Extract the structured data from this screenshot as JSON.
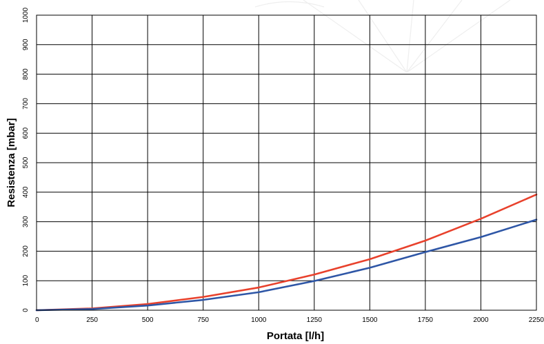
{
  "chart_data": {
    "type": "line",
    "title": "",
    "xlabel": "Portata [l/h]",
    "ylabel": "Resistenza [mbar]",
    "xlim": [
      0,
      2250
    ],
    "ylim": [
      0,
      1000
    ],
    "x_ticks": [
      "0",
      "250",
      "500",
      "750",
      "1000",
      "1250",
      "1500",
      "1750",
      "2000",
      "2250"
    ],
    "y_ticks": [
      "0",
      "100",
      "200",
      "300",
      "400",
      "500",
      "600",
      "700",
      "800",
      "900",
      "1000"
    ],
    "grid": true,
    "legend": "none",
    "series": [
      {
        "color": "#e8412c",
        "x": [
          0,
          250,
          500,
          750,
          1000,
          1250,
          1500,
          1750,
          2000,
          2250
        ],
        "y": [
          0,
          6,
          21,
          45,
          77,
          121,
          173,
          236,
          310,
          392
        ]
      },
      {
        "color": "#2e56a6",
        "x": [
          0,
          250,
          500,
          750,
          1000,
          1250,
          1500,
          1750,
          2000,
          2250
        ],
        "y": [
          0,
          4,
          16,
          35,
          61,
          99,
          144,
          197,
          248,
          307
        ]
      }
    ]
  }
}
